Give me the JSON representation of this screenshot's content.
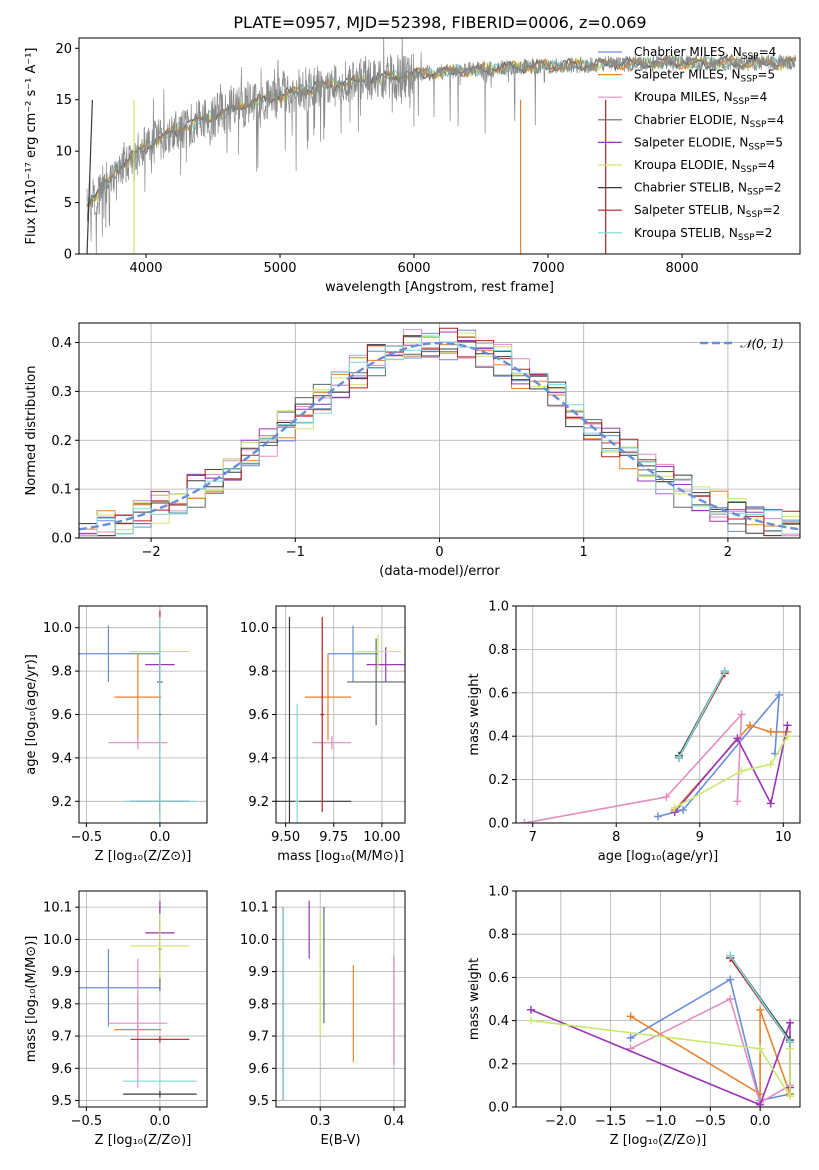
{
  "figure": {
    "title": "PLATE=0957, MJD=52398, FIBERID=0006, z=0.069",
    "series_colors": [
      "#6a8fd8",
      "#e8822b",
      "#e58cc0",
      "#5f6b66",
      "#9a34b8",
      "#c9e86f",
      "#3a3a3a",
      "#b22222",
      "#7fd8d8"
    ],
    "gray_color": "#8a8a8a"
  },
  "chart_data": [
    {
      "type": "line",
      "panel": "spectrum",
      "xlabel": "wavelength [Angstrom, rest frame]",
      "ylabel": "Flux [fλ10⁻¹⁷ erg cm⁻² s⁻¹ A⁻¹]",
      "xlim": [
        3500,
        8880
      ],
      "ylim": [
        0,
        21
      ],
      "xticks": [
        "4000",
        "5000",
        "6000",
        "7000",
        "8000"
      ],
      "yticks": [
        "0",
        "5",
        "10",
        "15",
        "20"
      ],
      "legend": "upper right",
      "legend_entries": [
        {
          "model": "Chabrier MILES,",
          "n": "4"
        },
        {
          "model": "Salpeter MILES,",
          "n": "5"
        },
        {
          "model": "Kroupa MILES,",
          "n": "4"
        },
        {
          "model": "Chabrier ELODIE,",
          "n": "4"
        },
        {
          "model": "Salpeter ELODIE,",
          "n": "5"
        },
        {
          "model": "Kroupa ELODIE,",
          "n": "4"
        },
        {
          "model": "Chabrier STELIB,",
          "n": "2"
        },
        {
          "model": "Salpeter STELIB,",
          "n": "2"
        },
        {
          "model": "Kroupa STELIB,",
          "n": "2"
        }
      ],
      "continuum_x": [
        3550,
        3650,
        3800,
        4000,
        4300,
        4800,
        5300,
        5800,
        6300,
        6800,
        7300,
        7800,
        8300,
        8850
      ],
      "continuum_y": [
        5,
        6,
        8.5,
        10.5,
        12.5,
        14.8,
        16.3,
        17.2,
        17.8,
        18.2,
        18.4,
        18.6,
        18.6,
        18.6
      ]
    },
    {
      "type": "line",
      "panel": "residual_histogram",
      "xlabel": "(data-model)/error",
      "ylabel": "Normed distribution",
      "xlim": [
        -2.5,
        2.5
      ],
      "ylim": [
        0,
        0.44
      ],
      "xticks": [
        "−2",
        "−1",
        "0",
        "1",
        "2"
      ],
      "yticks": [
        "0.0",
        "0.1",
        "0.2",
        "0.3",
        "0.4"
      ],
      "grid": true,
      "legend": "upper right",
      "gaussian_label": "𝒩(0, 1)",
      "gaussian": {
        "mean": 0,
        "sigma": 1
      }
    },
    {
      "type": "scatter",
      "panel": "Z_vs_age",
      "xlabel": "Z [log₁₀(Z/Z⊙)]",
      "ylabel": "age  [log₁₀(age/yr)]",
      "xlim": [
        -0.55,
        0.32
      ],
      "ylim": [
        9.1,
        10.1
      ],
      "xticks": [
        "−0.5",
        "0.0"
      ],
      "yticks": [
        "9.2",
        "9.4",
        "9.6",
        "9.8",
        "10.0"
      ],
      "grid": true,
      "points": [
        {
          "x": -0.35,
          "xerr": 0.35,
          "y": 9.88,
          "yerr": 0.13
        },
        {
          "x": -0.15,
          "xerr": 0.16,
          "y": 9.68,
          "yerr": 0.2
        },
        {
          "x": -0.15,
          "xerr": 0.2,
          "y": 9.47,
          "yerr": 0.03
        },
        {
          "x": 0.0,
          "xerr": 0.02,
          "y": 9.75,
          "yerr": 0.2
        },
        {
          "x": 0.0,
          "xerr": 0.1,
          "y": 9.83,
          "yerr": 0.08
        },
        {
          "x": 0.0,
          "xerr": 0.2,
          "y": 9.89,
          "yerr": 0.08
        },
        {
          "x": 0.0,
          "xerr": 0.2,
          "y": 9.2,
          "yerr": 0.05
        },
        {
          "x": 0.0,
          "xerr": 0.01,
          "y": 9.6,
          "yerr": 0.48
        },
        {
          "x": 0.0,
          "xerr": 0.25,
          "y": 9.2,
          "yerr": 0.85
        }
      ]
    },
    {
      "type": "scatter",
      "panel": "mass_vs_age",
      "xlabel": "mass [log₁₀(M/M⊙)]",
      "ylabel": "",
      "xlim": [
        9.45,
        10.12
      ],
      "ylim": [
        9.1,
        10.1
      ],
      "xticks": [
        "9.50",
        "9.75",
        "10.00"
      ],
      "yticks": [
        "9.2",
        "9.4",
        "9.6",
        "9.8",
        "10.0"
      ],
      "grid": true,
      "points": [
        {
          "x": 9.85,
          "xerr": 0.13,
          "y": 9.88,
          "yerr": 0.13
        },
        {
          "x": 9.72,
          "xerr": 0.12,
          "y": 9.68,
          "yerr": 0.2
        },
        {
          "x": 9.74,
          "xerr": 0.1,
          "y": 9.47,
          "yerr": 0.03
        },
        {
          "x": 9.97,
          "xerr": 0.15,
          "y": 9.75,
          "yerr": 0.2
        },
        {
          "x": 10.02,
          "xerr": 0.1,
          "y": 9.83,
          "yerr": 0.08
        },
        {
          "x": 9.98,
          "xerr": 0.12,
          "y": 9.89,
          "yerr": 0.08
        },
        {
          "x": 9.52,
          "xerr": 0.32,
          "y": 9.2,
          "yerr": 0.85
        },
        {
          "x": 9.69,
          "xerr": 0.01,
          "y": 9.6,
          "yerr": 0.45
        },
        {
          "x": 9.56,
          "xerr": 0.01,
          "y": 9.2,
          "yerr": 0.45
        }
      ]
    },
    {
      "type": "line",
      "panel": "age_vs_weight",
      "xlabel": "age  [log₁₀(age/yr)]",
      "ylabel": "mass weight",
      "xlim": [
        6.8,
        10.2
      ],
      "ylim": [
        0,
        1
      ],
      "xticks": [
        "7",
        "8",
        "9",
        "10"
      ],
      "yticks": [
        "0.0",
        "0.2",
        "0.4",
        "0.6",
        "0.8",
        "1.0"
      ],
      "grid": true,
      "series": [
        {
          "x": [
            8.5,
            8.8,
            9.95,
            9.9
          ],
          "y": [
            0.03,
            0.06,
            0.59,
            0.32
          ]
        },
        {
          "x": [
            8.7,
            9.6,
            9.85,
            10.05
          ],
          "y": [
            0.06,
            0.45,
            0.42,
            0.42
          ]
        },
        {
          "x": [
            6.9,
            8.6,
            9.5,
            9.45
          ],
          "y": [
            0.0,
            0.12,
            0.5,
            0.1
          ]
        },
        {
          "x": [
            8.75,
            9.3
          ],
          "y": [
            0.3,
            0.69
          ]
        },
        {
          "x": [
            8.7,
            9.45,
            9.85,
            10.05
          ],
          "y": [
            0.05,
            0.39,
            0.09,
            0.45
          ]
        },
        {
          "x": [
            8.7,
            9.5,
            9.85,
            10.05
          ],
          "y": [
            0.07,
            0.24,
            0.27,
            0.4
          ]
        },
        {
          "x": [
            8.75,
            9.3
          ],
          "y": [
            0.31,
            0.7
          ]
        },
        {
          "x": [
            8.75,
            9.3
          ],
          "y": [
            0.3,
            0.69
          ]
        },
        {
          "x": [
            8.75,
            9.3
          ],
          "y": [
            0.3,
            0.7
          ]
        }
      ]
    },
    {
      "type": "scatter",
      "panel": "Z_vs_mass",
      "xlabel": "Z [log₁₀(Z/Z⊙)]",
      "ylabel": "mass [log₁₀(M/M⊙)]",
      "xlim": [
        -0.55,
        0.32
      ],
      "ylim": [
        9.48,
        10.15
      ],
      "xticks": [
        "−0.5",
        "0.0"
      ],
      "yticks": [
        "9.5",
        "9.6",
        "9.7",
        "9.8",
        "9.9",
        "10.0",
        "10.1"
      ],
      "grid": true,
      "points": [
        {
          "x": -0.35,
          "xerr": 0.35,
          "y": 9.85,
          "yerr": 0.12
        },
        {
          "x": -0.15,
          "xerr": 0.16,
          "y": 9.72,
          "yerr": 0.1
        },
        {
          "x": -0.15,
          "xerr": 0.2,
          "y": 9.74,
          "yerr": 0.2
        },
        {
          "x": 0.0,
          "xerr": 0.01,
          "y": 9.97,
          "yerr": 0.13
        },
        {
          "x": 0.0,
          "xerr": 0.1,
          "y": 10.02,
          "yerr": 0.1
        },
        {
          "x": 0.0,
          "xerr": 0.2,
          "y": 9.98,
          "yerr": 0.1
        },
        {
          "x": 0.0,
          "xerr": 0.25,
          "y": 9.52,
          "yerr": 0.01
        },
        {
          "x": 0.0,
          "xerr": 0.2,
          "y": 9.69,
          "yerr": 0.01
        },
        {
          "x": 0.0,
          "xerr": 0.25,
          "y": 9.56,
          "yerr": 0.01
        }
      ]
    },
    {
      "type": "scatter",
      "panel": "ebv_vs_mass",
      "xlabel": "E(B-V)",
      "ylabel": "",
      "xlim": [
        0.24,
        0.415
      ],
      "ylim": [
        9.48,
        10.15
      ],
      "xticks": [
        "0.3",
        "0.4"
      ],
      "yticks": [
        "9.5",
        "9.6",
        "9.7",
        "9.8",
        "9.9",
        "10.0",
        "10.1"
      ],
      "grid": true,
      "points": [
        {
          "x": 0.4,
          "y": 9.78,
          "yerr": 0.17
        },
        {
          "x": 0.345,
          "y": 9.77,
          "yerr": 0.15
        },
        {
          "x": 0.4,
          "y": 9.78,
          "yerr": 0.17
        },
        {
          "x": 0.305,
          "y": 9.92,
          "yerr": 0.18
        },
        {
          "x": 0.285,
          "y": 10.03,
          "yerr": 0.09
        },
        {
          "x": 0.3,
          "y": 9.89,
          "yerr": 0.19
        },
        {
          "x": 0.25,
          "y": 9.8,
          "yerr": 0.3
        },
        {
          "x": 0.25,
          "y": 9.8,
          "yerr": 0.3
        },
        {
          "x": 0.25,
          "y": 9.8,
          "yerr": 0.3
        }
      ]
    },
    {
      "type": "line",
      "panel": "Z_vs_weight",
      "xlabel": "Z [log₁₀(Z/Z⊙)]",
      "ylabel": "mass weight",
      "xlim": [
        -2.45,
        0.4
      ],
      "ylim": [
        0,
        1
      ],
      "xticks": [
        "−2.0",
        "−1.5",
        "−1.0",
        "−0.5",
        "0.0"
      ],
      "yticks": [
        "0.0",
        "0.2",
        "0.4",
        "0.6",
        "0.8",
        "1.0"
      ],
      "grid": true,
      "series": [
        {
          "x": [
            -1.3,
            -0.3,
            0.0,
            0.3
          ],
          "y": [
            0.32,
            0.59,
            0.03,
            0.06
          ]
        },
        {
          "x": [
            -1.3,
            0.0,
            0.0,
            0.3
          ],
          "y": [
            0.42,
            0.06,
            0.45,
            0.06
          ]
        },
        {
          "x": [
            -1.3,
            -0.3,
            0.0,
            0.3
          ],
          "y": [
            0.27,
            0.5,
            0.02,
            0.1
          ]
        },
        {
          "x": [
            -0.3,
            0.3
          ],
          "y": [
            0.69,
            0.3
          ]
        },
        {
          "x": [
            -2.3,
            0.0,
            0.3,
            0.3
          ],
          "y": [
            0.45,
            0.01,
            0.39,
            0.09
          ]
        },
        {
          "x": [
            -2.3,
            0.0,
            0.3,
            0.3
          ],
          "y": [
            0.4,
            0.27,
            0.05,
            0.27
          ]
        },
        {
          "x": [
            -0.3,
            0.3
          ],
          "y": [
            0.7,
            0.31
          ]
        },
        {
          "x": [
            -0.3,
            0.3
          ],
          "y": [
            0.69,
            0.3
          ]
        },
        {
          "x": [
            -0.3,
            0.3
          ],
          "y": [
            0.7,
            0.3
          ]
        }
      ]
    }
  ]
}
